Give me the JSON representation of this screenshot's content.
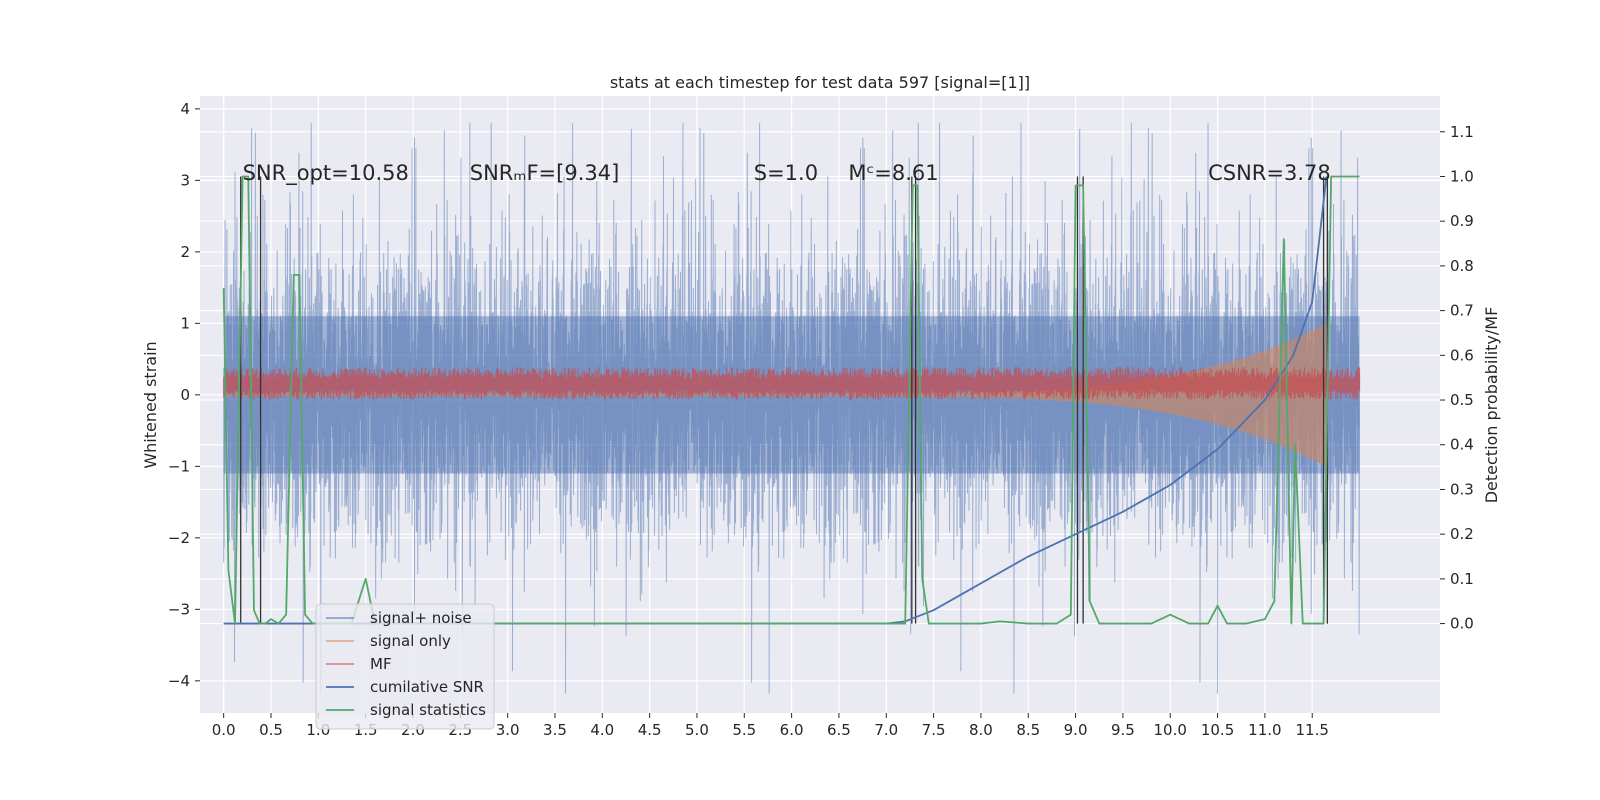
{
  "chart_data": {
    "type": "line",
    "title": "stats at each timestep for test data 597 [signal=[1]]",
    "xlabel": "",
    "ylabel": "Whitened strain",
    "y2label": "Detection probability/MF",
    "xlim": [
      -0.25,
      12.85
    ],
    "ylim": [
      -4.45,
      4.18
    ],
    "y2lim": [
      -0.2,
      1.18
    ],
    "xticks": [
      0.0,
      0.5,
      1.0,
      1.5,
      2.0,
      2.5,
      3.0,
      3.5,
      4.0,
      4.5,
      5.0,
      5.5,
      6.0,
      6.5,
      7.0,
      7.5,
      8.0,
      8.5,
      9.0,
      9.5,
      10.0,
      10.5,
      11.0,
      11.5
    ],
    "xtick_labels": [
      "0.0",
      "0.5",
      "1.0",
      "1.5",
      "2.0",
      "2.5",
      "3.0",
      "3.5",
      "4.0",
      "4.5",
      "5.0",
      "5.5",
      "6.0",
      "6.5",
      "7.0",
      "7.5",
      "8.0",
      "8.5",
      "9.0",
      "9.5",
      "10.0",
      "10.5",
      "11.0",
      "11.5"
    ],
    "yticks": [
      -4,
      -3,
      -2,
      -1,
      0,
      1,
      2,
      3,
      4
    ],
    "ytick_labels": [
      "−4",
      "−3",
      "−2",
      "−1",
      "0",
      "1",
      "2",
      "3",
      "4"
    ],
    "y2ticks": [
      0.0,
      0.1,
      0.2,
      0.3,
      0.4,
      0.5,
      0.6,
      0.7,
      0.8,
      0.9,
      1.0,
      1.1
    ],
    "y2tick_labels": [
      "0.0",
      "0.1",
      "0.2",
      "0.3",
      "0.4",
      "0.5",
      "0.6",
      "0.7",
      "0.8",
      "0.9",
      "1.0",
      "1.1"
    ],
    "grid": true,
    "legend_position": "lower-left",
    "annotations": [
      {
        "text": "SNR_opt=10.58",
        "x": 0.2,
        "y": 3.1
      },
      {
        "text": "SNRₘF=[9.34]",
        "x": 2.6,
        "y": 3.1
      },
      {
        "text": "S=1.0",
        "x": 5.6,
        "y": 3.1
      },
      {
        "text": "Mᶜ=8.61",
        "x": 6.6,
        "y": 3.1
      },
      {
        "text": "CSNR=3.78",
        "x": 10.4,
        "y": 3.1
      }
    ],
    "series": [
      {
        "name": "signal+ noise",
        "color": "#4c72b0",
        "kind": "noise-band",
        "x_range": [
          0.0,
          12.0
        ],
        "amplitude_typical": 1.5,
        "amplitude_max": 3.8
      },
      {
        "name": "signal only",
        "color": "#dd8452",
        "kind": "chirp",
        "x_range": [
          0.0,
          11.65
        ],
        "amplitude_start": 0.02,
        "amplitude_end": 1.0
      },
      {
        "name": "MF",
        "color": "#c44e52",
        "kind": "band",
        "x_range": [
          0.0,
          12.0
        ],
        "center": 0.15,
        "amplitude": 0.2
      },
      {
        "name": "cumilative SNR",
        "color": "#4c72b0",
        "axis": "right",
        "x": [
          0.0,
          7.0,
          7.2,
          7.5,
          8.0,
          8.5,
          9.0,
          9.5,
          10.0,
          10.5,
          11.0,
          11.3,
          11.5,
          11.65
        ],
        "y": [
          0.0,
          0.0,
          0.005,
          0.03,
          0.09,
          0.15,
          0.2,
          0.25,
          0.31,
          0.39,
          0.5,
          0.6,
          0.72,
          1.0
        ]
      },
      {
        "name": "signal statistics",
        "color": "#55a868",
        "axis": "right",
        "x": [
          0.0,
          0.05,
          0.12,
          0.2,
          0.26,
          0.32,
          0.38,
          0.44,
          0.5,
          0.58,
          0.66,
          0.74,
          0.8,
          0.86,
          0.94,
          1.05,
          1.2,
          1.35,
          1.5,
          1.6,
          1.75,
          2.0,
          4.0,
          7.2,
          7.28,
          7.33,
          7.38,
          7.45,
          7.55,
          8.0,
          8.2,
          8.5,
          8.8,
          8.95,
          9.0,
          9.08,
          9.15,
          9.25,
          9.4,
          9.8,
          10.0,
          10.2,
          10.4,
          10.5,
          10.6,
          10.8,
          11.0,
          11.1,
          11.2,
          11.28,
          11.32,
          11.4,
          11.5,
          11.62,
          11.7,
          11.8,
          12.0
        ],
        "y": [
          0.75,
          0.12,
          0.0,
          1.0,
          1.0,
          0.03,
          0.0,
          0.0,
          0.01,
          0.0,
          0.02,
          0.78,
          0.78,
          0.02,
          0.0,
          0.0,
          0.0,
          0.0,
          0.1,
          0.0,
          0.0,
          0.0,
          0.0,
          0.0,
          0.98,
          0.98,
          0.1,
          0.0,
          0.0,
          0.0,
          0.005,
          0.0,
          0.0,
          0.02,
          0.98,
          0.98,
          0.05,
          0.0,
          0.0,
          0.0,
          0.02,
          0.0,
          0.0,
          0.04,
          0.0,
          0.0,
          0.01,
          0.05,
          0.86,
          0.0,
          0.4,
          0.0,
          0.0,
          0.0,
          1.0,
          1.0,
          1.0
        ]
      }
    ],
    "vertical_lines_x": [
      0.18,
      0.39,
      7.27,
      7.31,
      9.02,
      9.08,
      11.62,
      11.66
    ]
  }
}
